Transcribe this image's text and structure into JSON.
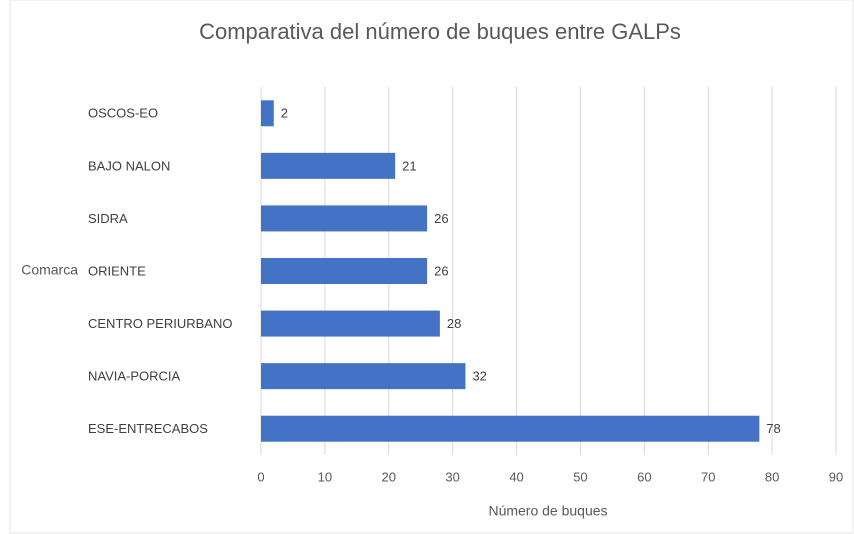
{
  "chart_data": {
    "type": "bar",
    "orientation": "horizontal",
    "title": "Comparativa del número de buques entre GALPs",
    "x_label": "Número de buques",
    "y_label": "Comarca",
    "categories": [
      "OSCOS-EO",
      "BAJO NALON",
      "SIDRA",
      "ORIENTE",
      "CENTRO PERIURBANO",
      "NAVIA-PORCIA",
      "ESE-ENTRECABOS"
    ],
    "values": [
      2,
      21,
      26,
      26,
      28,
      32,
      78
    ],
    "color": "#4472c4",
    "xlim": [
      0,
      90
    ],
    "xticks": [
      0,
      10,
      20,
      30,
      40,
      50,
      60,
      70,
      80,
      90
    ],
    "grid": true
  }
}
